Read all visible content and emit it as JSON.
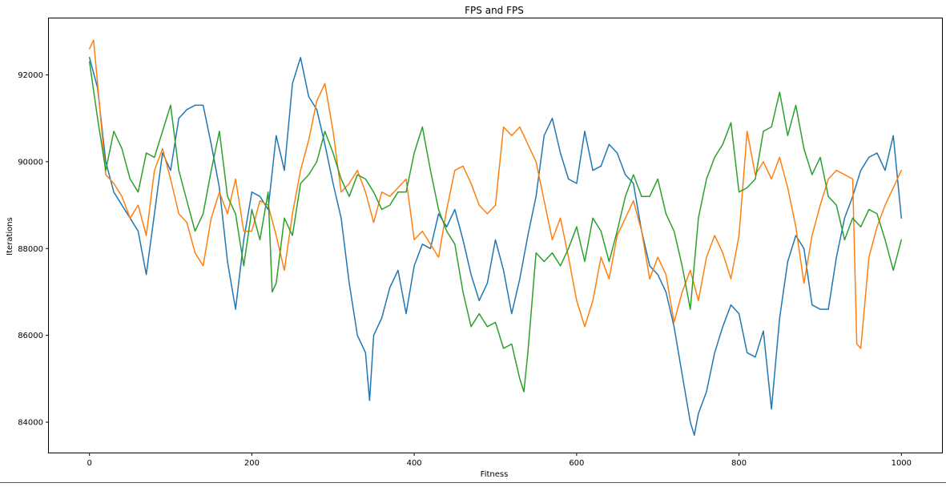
{
  "chart_data": {
    "type": "line",
    "title": "FPS and FPS",
    "xlabel": "Fitness",
    "ylabel": "Iterations",
    "xlim": [
      -50,
      1050
    ],
    "ylim": [
      83300,
      93300
    ],
    "xticks": [
      0,
      200,
      400,
      600,
      800,
      1000
    ],
    "yticks": [
      84000,
      86000,
      88000,
      90000,
      92000
    ],
    "grid": false,
    "legend": "none",
    "series": [
      {
        "color": "#1f77b4",
        "x": [
          0,
          10,
          20,
          30,
          40,
          50,
          60,
          70,
          80,
          90,
          100,
          110,
          120,
          130,
          140,
          150,
          160,
          170,
          180,
          190,
          200,
          210,
          220,
          230,
          240,
          250,
          260,
          270,
          280,
          290,
          300,
          310,
          320,
          330,
          340,
          345,
          350,
          360,
          370,
          380,
          390,
          400,
          410,
          420,
          430,
          440,
          450,
          460,
          470,
          480,
          490,
          500,
          510,
          520,
          530,
          540,
          550,
          560,
          570,
          580,
          590,
          600,
          610,
          620,
          630,
          640,
          650,
          660,
          670,
          680,
          690,
          700,
          710,
          720,
          730,
          740,
          745,
          750,
          760,
          770,
          780,
          790,
          800,
          810,
          820,
          830,
          840,
          850,
          860,
          870,
          880,
          890,
          900,
          910,
          920,
          930,
          940,
          950,
          960,
          970,
          980,
          990,
          1000
        ],
        "y": [
          92400,
          91700,
          90000,
          89300,
          89000,
          88700,
          88400,
          87400,
          88800,
          90200,
          89800,
          91000,
          91200,
          91300,
          91300,
          90400,
          89400,
          87700,
          86600,
          88200,
          89300,
          89200,
          88900,
          90600,
          89800,
          91800,
          92400,
          91500,
          91200,
          90400,
          89500,
          88700,
          87200,
          86000,
          85600,
          84500,
          86000,
          86400,
          87100,
          87500,
          86500,
          87600,
          88100,
          88000,
          88800,
          88500,
          88900,
          88200,
          87400,
          86800,
          87200,
          88200,
          87500,
          86500,
          87300,
          88300,
          89200,
          90600,
          91000,
          90200,
          89600,
          89500,
          90700,
          89800,
          89900,
          90400,
          90200,
          89700,
          89500,
          88400,
          87600,
          87400,
          87000,
          86200,
          85100,
          84000,
          83700,
          84200,
          84700,
          85600,
          86200,
          86700,
          86500,
          85600,
          85500,
          86100,
          84300,
          86400,
          87700,
          88300,
          88000,
          86700,
          86600,
          86600,
          87800,
          88700,
          89200,
          89800,
          90100,
          90200,
          89800,
          90600,
          88700
        ]
      },
      {
        "color": "#ff7f0e",
        "x": [
          0,
          5,
          10,
          20,
          30,
          40,
          50,
          60,
          70,
          80,
          90,
          100,
          110,
          120,
          130,
          140,
          150,
          160,
          170,
          180,
          190,
          200,
          210,
          220,
          230,
          240,
          250,
          260,
          270,
          280,
          290,
          300,
          310,
          320,
          330,
          340,
          350,
          360,
          370,
          380,
          390,
          400,
          410,
          420,
          430,
          440,
          450,
          460,
          470,
          480,
          490,
          500,
          510,
          520,
          530,
          540,
          550,
          560,
          570,
          580,
          590,
          600,
          610,
          620,
          630,
          640,
          650,
          660,
          670,
          680,
          690,
          700,
          710,
          720,
          730,
          740,
          750,
          760,
          770,
          780,
          790,
          800,
          810,
          820,
          830,
          840,
          850,
          860,
          870,
          880,
          890,
          900,
          910,
          920,
          930,
          940,
          945,
          950,
          960,
          970,
          980,
          990,
          1000
        ],
        "y": [
          92600,
          92800,
          91800,
          89700,
          89500,
          89200,
          88700,
          89000,
          88300,
          89800,
          90300,
          89600,
          88800,
          88600,
          87900,
          87600,
          88700,
          89300,
          88800,
          89600,
          88400,
          88400,
          89100,
          89000,
          88300,
          87500,
          88800,
          89800,
          90500,
          91400,
          91800,
          90700,
          89300,
          89500,
          89800,
          89300,
          88600,
          89300,
          89200,
          89400,
          89600,
          88200,
          88400,
          88100,
          87800,
          88900,
          89800,
          89900,
          89500,
          89000,
          88800,
          89000,
          90800,
          90600,
          90800,
          90400,
          90000,
          89100,
          88200,
          88700,
          87800,
          86800,
          86200,
          86800,
          87800,
          87300,
          88300,
          88700,
          89100,
          88400,
          87300,
          87800,
          87400,
          86300,
          87000,
          87500,
          86800,
          87800,
          88300,
          87900,
          87300,
          88300,
          90700,
          89700,
          90000,
          89600,
          90100,
          89400,
          88500,
          87200,
          88300,
          89000,
          89600,
          89800,
          89700,
          89600,
          85800,
          85700,
          87800,
          88500,
          89000,
          89400,
          89800
        ]
      },
      {
        "color": "#2ca02c",
        "x": [
          0,
          10,
          20,
          30,
          40,
          50,
          60,
          70,
          80,
          90,
          100,
          110,
          120,
          130,
          140,
          150,
          160,
          170,
          180,
          190,
          200,
          210,
          220,
          225,
          230,
          240,
          250,
          260,
          270,
          280,
          290,
          300,
          310,
          320,
          330,
          340,
          350,
          360,
          370,
          380,
          390,
          400,
          410,
          420,
          430,
          440,
          450,
          460,
          470,
          480,
          490,
          500,
          510,
          520,
          530,
          535,
          540,
          550,
          560,
          570,
          580,
          590,
          600,
          610,
          620,
          630,
          640,
          650,
          660,
          670,
          680,
          690,
          700,
          710,
          720,
          730,
          740,
          750,
          760,
          770,
          780,
          790,
          800,
          810,
          820,
          830,
          840,
          850,
          860,
          870,
          880,
          890,
          900,
          910,
          920,
          930,
          940,
          950,
          960,
          970,
          980,
          990,
          1000
        ],
        "y": [
          92300,
          91000,
          89800,
          90700,
          90300,
          89600,
          89300,
          90200,
          90100,
          90700,
          91300,
          89800,
          89100,
          88400,
          88800,
          89800,
          90700,
          89200,
          88800,
          87600,
          88900,
          88200,
          89300,
          87000,
          87200,
          88700,
          88300,
          89500,
          89700,
          90000,
          90700,
          90200,
          89600,
          89200,
          89700,
          89600,
          89300,
          88900,
          89000,
          89300,
          89300,
          90200,
          90800,
          89800,
          88900,
          88400,
          88100,
          87000,
          86200,
          86500,
          86200,
          86300,
          85700,
          85800,
          85000,
          84700,
          85600,
          87900,
          87700,
          87900,
          87600,
          88000,
          88500,
          87700,
          88700,
          88400,
          87700,
          88400,
          89200,
          89700,
          89200,
          89200,
          89600,
          88800,
          88400,
          87600,
          86600,
          88700,
          89600,
          90100,
          90400,
          90900,
          89300,
          89400,
          89600,
          90700,
          90800,
          91600,
          90600,
          91300,
          90300,
          89700,
          90100,
          89200,
          89000,
          88200,
          88700,
          88500,
          88900,
          88800,
          88200,
          87500,
          88200
        ]
      }
    ]
  }
}
